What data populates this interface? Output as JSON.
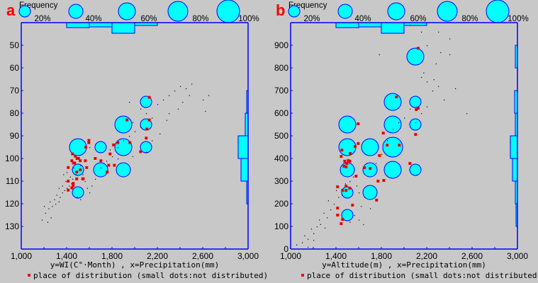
{
  "chart_data": [
    {
      "type": "scatter",
      "panel_label": "a",
      "legend_title": "Frequency",
      "bubble_legend": [
        {
          "pct": 20,
          "label": "20%"
        },
        {
          "pct": 40,
          "label": "40%"
        },
        {
          "pct": 60,
          "label": "60%"
        },
        {
          "pct": 80,
          "label": "80%"
        },
        {
          "pct": 100,
          "label": "100%"
        }
      ],
      "xlabel": "y=WI(C°·Month) , x=Precipitation(mm)",
      "legend_text": "place of distribution (small dots:not distributed)",
      "xlim": [
        1000,
        3000
      ],
      "ylim_top_bottom": [
        40,
        140
      ],
      "x_ticks": [
        1000,
        1200,
        1400,
        1600,
        1800,
        2000,
        2200,
        2400,
        2600,
        2800,
        3000
      ],
      "x_tick_labels": [
        {
          "v": 1000,
          "t": "1,000"
        },
        {
          "v": 1400,
          "t": "1,400"
        },
        {
          "v": 1800,
          "t": "1,800"
        },
        {
          "v": 2200,
          "t": "2,200"
        },
        {
          "v": 2600,
          "t": "2,600"
        },
        {
          "v": 3000,
          "t": "3,000"
        }
      ],
      "y_tick_labels": [
        {
          "v": 50,
          "t": "50"
        },
        {
          "v": 60,
          "t": "60"
        },
        {
          "v": 70,
          "t": "70"
        },
        {
          "v": 80,
          "t": "80"
        },
        {
          "v": 90,
          "t": "90"
        },
        {
          "v": 100,
          "t": "100"
        },
        {
          "v": 110,
          "t": "110"
        },
        {
          "v": 120,
          "t": "120"
        },
        {
          "v": 130,
          "t": "130"
        }
      ],
      "bubbles": [
        {
          "x": 1500,
          "y": 95,
          "pct": 60
        },
        {
          "x": 1500,
          "y": 105,
          "pct": 20
        },
        {
          "x": 1500,
          "y": 115,
          "pct": 20
        },
        {
          "x": 1700,
          "y": 95,
          "pct": 20
        },
        {
          "x": 1700,
          "y": 105,
          "pct": 40
        },
        {
          "x": 1900,
          "y": 85,
          "pct": 60
        },
        {
          "x": 1900,
          "y": 95,
          "pct": 60
        },
        {
          "x": 1900,
          "y": 105,
          "pct": 40
        },
        {
          "x": 2100,
          "y": 75,
          "pct": 20
        },
        {
          "x": 2100,
          "y": 85,
          "pct": 20
        },
        {
          "x": 2100,
          "y": 95,
          "pct": 20
        }
      ],
      "x_histogram": {
        "bins": [
          [
            1400,
            1600
          ],
          [
            1600,
            1800
          ],
          [
            1800,
            2000
          ],
          [
            2000,
            2200
          ]
        ],
        "values": [
          7,
          6,
          15,
          4
        ]
      },
      "y_histogram": {
        "bins": [
          [
            70,
            80
          ],
          [
            80,
            90
          ],
          [
            90,
            100
          ],
          [
            100,
            110
          ],
          [
            110,
            120
          ]
        ],
        "values": [
          2,
          4,
          14,
          10,
          2
        ]
      },
      "distributed_points": [
        [
          2129,
          73
        ],
        [
          1933,
          83
        ],
        [
          2129,
          83
        ],
        [
          2108,
          87
        ],
        [
          1596,
          92
        ],
        [
          1596,
          93
        ],
        [
          1569,
          95
        ],
        [
          1452,
          98
        ],
        [
          1477,
          99
        ],
        [
          1492,
          100
        ],
        [
          1505,
          100
        ],
        [
          1520,
          101
        ],
        [
          1446,
          101
        ],
        [
          1460,
          102
        ],
        [
          1471,
          102
        ],
        [
          1565,
          101
        ],
        [
          1414,
          104
        ],
        [
          1577,
          104
        ],
        [
          1652,
          100
        ],
        [
          1702,
          101
        ],
        [
          1783,
          98
        ],
        [
          1814,
          94
        ],
        [
          1852,
          93
        ],
        [
          1958,
          93
        ],
        [
          2102,
          91
        ],
        [
          2052,
          97
        ],
        [
          1771,
          103
        ],
        [
          1821,
          103
        ],
        [
          1758,
          106
        ],
        [
          1489,
          106
        ],
        [
          1521,
          105
        ],
        [
          1489,
          109
        ],
        [
          1546,
          109
        ],
        [
          1542,
          109
        ],
        [
          1414,
          110
        ],
        [
          1458,
          111
        ],
        [
          1446,
          113
        ],
        [
          1458,
          112
        ],
        [
          1414,
          114
        ]
      ],
      "not_distributed_points": [
        [
          1180,
          127
        ],
        [
          1230,
          128
        ],
        [
          1260,
          126
        ],
        [
          1210,
          124
        ],
        [
          1240,
          122
        ],
        [
          1200,
          121
        ],
        [
          1270,
          121
        ],
        [
          1300,
          120
        ],
        [
          1330,
          119
        ],
        [
          1250,
          119
        ],
        [
          1290,
          118
        ],
        [
          1340,
          117
        ],
        [
          1310,
          116
        ],
        [
          1360,
          115
        ],
        [
          1380,
          114
        ],
        [
          1400,
          113
        ],
        [
          1330,
          113
        ],
        [
          1420,
          112
        ],
        [
          1360,
          112
        ],
        [
          1440,
          111
        ],
        [
          1390,
          110
        ],
        [
          1410,
          110
        ],
        [
          1450,
          109
        ],
        [
          1370,
          107
        ],
        [
          1430,
          108
        ],
        [
          1480,
          107
        ],
        [
          1400,
          106
        ],
        [
          1460,
          104
        ],
        [
          1520,
          103
        ],
        [
          1540,
          107
        ],
        [
          1560,
          110
        ],
        [
          1580,
          113
        ],
        [
          1490,
          117
        ],
        [
          1520,
          118
        ],
        [
          1600,
          115
        ],
        [
          1620,
          112
        ],
        [
          1650,
          109
        ],
        [
          1700,
          104
        ],
        [
          1750,
          101
        ],
        [
          1800,
          99
        ],
        [
          1780,
          96
        ],
        [
          1850,
          95
        ],
        [
          1900,
          92
        ],
        [
          1950,
          90
        ],
        [
          2000,
          88
        ],
        [
          1980,
          84
        ],
        [
          2050,
          86
        ],
        [
          2100,
          80
        ],
        [
          2150,
          82
        ],
        [
          2050,
          78
        ],
        [
          2200,
          76
        ],
        [
          2250,
          74
        ],
        [
          2300,
          72
        ],
        [
          2350,
          70
        ],
        [
          2400,
          68
        ],
        [
          2450,
          69
        ],
        [
          2500,
          67
        ],
        [
          2480,
          72
        ],
        [
          2420,
          75
        ],
        [
          2380,
          78
        ],
        [
          2300,
          80
        ],
        [
          2280,
          83
        ],
        [
          2600,
          74
        ],
        [
          2650,
          72
        ],
        [
          2620,
          79
        ],
        [
          2220,
          89
        ],
        [
          2150,
          92
        ],
        [
          2100,
          97
        ],
        [
          1980,
          99
        ],
        [
          1850,
          100
        ],
        [
          1950,
          75
        ],
        [
          1600,
          95
        ],
        [
          1650,
          100
        ]
      ]
    },
    {
      "type": "scatter",
      "panel_label": "b",
      "legend_title": "Frequency",
      "bubble_legend": [
        {
          "pct": 20,
          "label": "20%"
        },
        {
          "pct": 40,
          "label": "40%"
        },
        {
          "pct": 60,
          "label": "60%"
        },
        {
          "pct": 80,
          "label": "80%"
        },
        {
          "pct": 100,
          "label": "100%"
        }
      ],
      "xlabel": "y=Altitude(m) , x=Precipitation(mm)",
      "legend_text": "place of distribution (small dots:not distributed)",
      "xlim": [
        1000,
        3000
      ],
      "ylim_top_bottom": [
        1000,
        0
      ],
      "x_ticks": [
        1000,
        1200,
        1400,
        1600,
        1800,
        2000,
        2200,
        2400,
        2600,
        2800,
        3000
      ],
      "x_tick_labels": [
        {
          "v": 1000,
          "t": "1,000"
        },
        {
          "v": 1400,
          "t": "1,400"
        },
        {
          "v": 1800,
          "t": "1,800"
        },
        {
          "v": 2200,
          "t": "2,200"
        },
        {
          "v": 2600,
          "t": "2,600"
        },
        {
          "v": 3000,
          "t": "3,000"
        }
      ],
      "y_tick_labels": [
        {
          "v": 0,
          "t": "0"
        },
        {
          "v": 100,
          "t": "100"
        },
        {
          "v": 200,
          "t": "200"
        },
        {
          "v": 300,
          "t": "300"
        },
        {
          "v": 400,
          "t": "400"
        },
        {
          "v": 500,
          "t": "500"
        },
        {
          "v": 600,
          "t": "600"
        },
        {
          "v": 700,
          "t": "700"
        },
        {
          "v": 800,
          "t": "800"
        },
        {
          "v": 900,
          "t": "900"
        }
      ],
      "bubbles": [
        {
          "x": 2100,
          "y": 850,
          "pct": 60
        },
        {
          "x": 1900,
          "y": 650,
          "pct": 60
        },
        {
          "x": 2100,
          "y": 650,
          "pct": 20
        },
        {
          "x": 1500,
          "y": 550,
          "pct": 60
        },
        {
          "x": 1900,
          "y": 550,
          "pct": 60
        },
        {
          "x": 2100,
          "y": 550,
          "pct": 20
        },
        {
          "x": 1500,
          "y": 450,
          "pct": 60
        },
        {
          "x": 1700,
          "y": 450,
          "pct": 60
        },
        {
          "x": 1900,
          "y": 450,
          "pct": 80
        },
        {
          "x": 1500,
          "y": 350,
          "pct": 40
        },
        {
          "x": 1700,
          "y": 350,
          "pct": 40
        },
        {
          "x": 1900,
          "y": 350,
          "pct": 60
        },
        {
          "x": 2100,
          "y": 350,
          "pct": 20
        },
        {
          "x": 1500,
          "y": 250,
          "pct": 20
        },
        {
          "x": 1700,
          "y": 250,
          "pct": 40
        },
        {
          "x": 1500,
          "y": 150,
          "pct": 20
        }
      ],
      "x_histogram": {
        "bins": [
          [
            1400,
            1600
          ],
          [
            1600,
            1800
          ],
          [
            1800,
            2000
          ],
          [
            2000,
            2200
          ]
        ],
        "values": [
          7,
          6,
          15,
          4
        ]
      },
      "y_histogram": {
        "bins": [
          [
            800,
            900
          ],
          [
            600,
            700
          ],
          [
            500,
            600
          ],
          [
            400,
            500
          ],
          [
            300,
            400
          ],
          [
            200,
            300
          ],
          [
            100,
            200
          ]
        ],
        "values": [
          3,
          4,
          3,
          10,
          7,
          3,
          2
        ]
      },
      "distributed_points": [
        [
          2125,
          887
        ],
        [
          1933,
          672
        ],
        [
          2125,
          622
        ],
        [
          2108,
          616
        ],
        [
          1596,
          553
        ],
        [
          1817,
          512
        ],
        [
          2102,
          506
        ],
        [
          1596,
          466
        ],
        [
          1569,
          453
        ],
        [
          1852,
          459
        ],
        [
          1958,
          459
        ],
        [
          1452,
          437
        ],
        [
          1527,
          422
        ],
        [
          1446,
          409
        ],
        [
          1783,
          413
        ],
        [
          1477,
          388
        ],
        [
          1508,
          391
        ],
        [
          1521,
          388
        ],
        [
          1496,
          378
        ],
        [
          1471,
          366
        ],
        [
          1489,
          363
        ],
        [
          2052,
          378
        ],
        [
          1652,
          359
        ],
        [
          1702,
          356
        ],
        [
          1577,
          322
        ],
        [
          1771,
          300
        ],
        [
          1821,
          303
        ],
        [
          1414,
          275
        ],
        [
          1489,
          278
        ],
        [
          1521,
          269
        ],
        [
          1458,
          259
        ],
        [
          1489,
          259
        ],
        [
          1758,
          216
        ],
        [
          1546,
          194
        ],
        [
          1414,
          181
        ],
        [
          1414,
          150
        ],
        [
          1458,
          131
        ],
        [
          1446,
          112
        ]
      ],
      "not_distributed_points": [
        [
          1050,
          20
        ],
        [
          1100,
          30
        ],
        [
          1150,
          45
        ],
        [
          1120,
          60
        ],
        [
          1200,
          70
        ],
        [
          1180,
          90
        ],
        [
          1230,
          100
        ],
        [
          1260,
          110
        ],
        [
          1300,
          95
        ],
        [
          1250,
          130
        ],
        [
          1320,
          140
        ],
        [
          1290,
          160
        ],
        [
          1350,
          175
        ],
        [
          1380,
          200
        ],
        [
          1330,
          215
        ],
        [
          1420,
          230
        ],
        [
          1400,
          260
        ],
        [
          1450,
          240
        ],
        [
          1480,
          290
        ],
        [
          1520,
          300
        ],
        [
          1550,
          320
        ],
        [
          1580,
          280
        ],
        [
          1600,
          250
        ],
        [
          1650,
          230
        ],
        [
          1620,
          190
        ],
        [
          1700,
          180
        ],
        [
          1560,
          150
        ],
        [
          1600,
          130
        ],
        [
          1640,
          110
        ],
        [
          1520,
          120
        ],
        [
          1750,
          380
        ],
        [
          1800,
          420
        ],
        [
          1850,
          480
        ],
        [
          1900,
          530
        ],
        [
          1950,
          560
        ],
        [
          2000,
          580
        ],
        [
          2050,
          620
        ],
        [
          2100,
          560
        ],
        [
          2150,
          600
        ],
        [
          2200,
          630
        ],
        [
          2250,
          700
        ],
        [
          2300,
          720
        ],
        [
          2200,
          740
        ],
        [
          2150,
          760
        ],
        [
          2170,
          780
        ],
        [
          2260,
          750
        ],
        [
          2280,
          820
        ],
        [
          2400,
          860
        ],
        [
          2320,
          870
        ],
        [
          2450,
          710
        ],
        [
          2200,
          900
        ],
        [
          2300,
          960
        ],
        [
          2400,
          930
        ],
        [
          1780,
          860
        ],
        [
          2050,
          990
        ],
        [
          2150,
          960
        ],
        [
          2550,
          600
        ],
        [
          2350,
          660
        ],
        [
          1200,
          40
        ],
        [
          1150,
          10
        ]
      ]
    }
  ],
  "colors": {
    "axis": "#0000ff",
    "bubble_fill": "#00ffff",
    "bubble_stroke": "#0000ff",
    "distributed": "#ff0000",
    "dot": "#000000",
    "panel_label": "#ff0000",
    "background": "#c8c8c8"
  }
}
